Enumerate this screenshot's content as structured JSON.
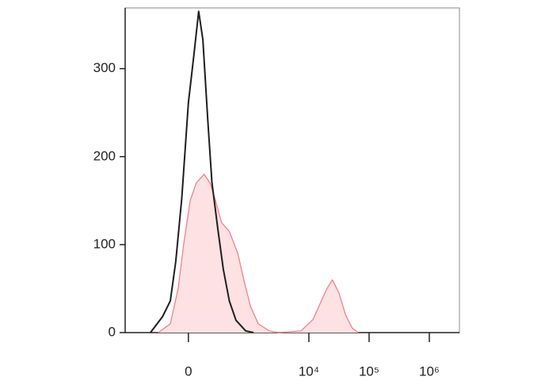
{
  "chart_data": {
    "type": "histogram-overlay",
    "xlim": [
      0.95,
      6.5
    ],
    "xticks": [
      {
        "value": 2,
        "label": "0"
      },
      {
        "value": 4,
        "label": "10⁴"
      },
      {
        "value": 5,
        "label": "10⁵"
      },
      {
        "value": 6,
        "label": "10⁶"
      }
    ],
    "ylim": [
      0,
      369
    ],
    "yticks": [
      0,
      100,
      200,
      300
    ],
    "series": [
      {
        "color": "#f07a82",
        "fill": "#fde1e3",
        "x": [
          1.5,
          1.7,
          1.83,
          1.92,
          2.03,
          2.13,
          2.26,
          2.36,
          2.45,
          2.55,
          2.68,
          2.82,
          2.92,
          3.03,
          3.16,
          3.34,
          3.5,
          3.87,
          4.07,
          4.2,
          4.3,
          4.39,
          4.5,
          4.61,
          4.72,
          4.82
        ],
        "values": [
          0,
          10,
          50,
          100,
          150,
          170,
          180,
          170,
          150,
          125,
          115,
          90,
          60,
          30,
          10,
          2,
          0,
          2,
          15,
          35,
          50,
          60,
          45,
          20,
          5,
          0
        ]
      },
      {
        "color": "#1e1e1e",
        "x": [
          1.37,
          1.57,
          1.7,
          1.79,
          1.89,
          2.0,
          2.09,
          2.17,
          2.24,
          2.32,
          2.39,
          2.49,
          2.58,
          2.68,
          2.79,
          2.95,
          3.08
        ],
        "values": [
          0,
          18,
          36,
          81,
          153,
          261,
          315,
          365,
          333,
          243,
          171,
          117,
          72,
          36,
          14,
          2,
          0
        ]
      }
    ]
  }
}
